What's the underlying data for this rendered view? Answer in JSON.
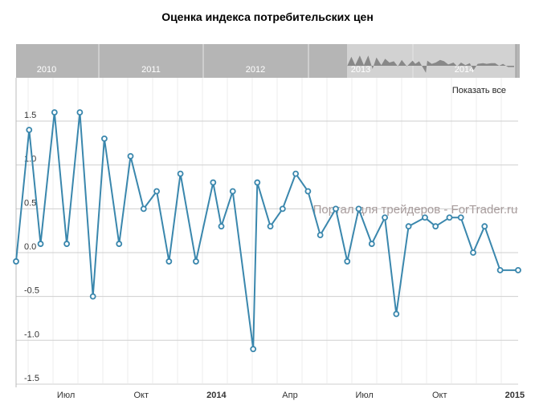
{
  "chart_data": {
    "type": "line",
    "title": "Оценка индекса потребительских цен",
    "xlabel": "",
    "ylabel": "",
    "ylim": [
      -1.5,
      1.75
    ],
    "xlim": [
      "2013-05-01",
      "2015-01-05"
    ],
    "grid": true,
    "y_ticks": [
      "1.5",
      "1.0",
      "0.5",
      "0.0",
      "-0.5",
      "-1.0",
      "-1.5"
    ],
    "x_ticks": [
      {
        "date": "2013-07-01",
        "label": "Июл",
        "bold": false
      },
      {
        "date": "2013-10-01",
        "label": "Окт",
        "bold": false
      },
      {
        "date": "2014-01-01",
        "label": "2014",
        "bold": true
      },
      {
        "date": "2014-04-01",
        "label": "Апр",
        "bold": false
      },
      {
        "date": "2014-07-01",
        "label": "Июл",
        "bold": false
      },
      {
        "date": "2014-10-01",
        "label": "Окт",
        "bold": false
      },
      {
        "date": "2015-01-01",
        "label": "2015",
        "bold": true
      }
    ],
    "series": [
      {
        "name": "Оценка индекса потребительских цен",
        "color": "#3a87ad",
        "x": [
          "2013-05-01",
          "2013-05-17",
          "2013-05-31",
          "2013-06-17",
          "2013-07-02",
          "2013-07-18",
          "2013-08-03",
          "2013-08-17",
          "2013-09-04",
          "2013-09-18",
          "2013-10-04",
          "2013-10-20",
          "2013-11-04",
          "2013-11-18",
          "2013-12-07",
          "2013-12-28",
          "2014-01-07",
          "2014-01-21",
          "2014-02-15",
          "2014-02-20",
          "2014-03-08",
          "2014-03-23",
          "2014-04-08",
          "2014-04-23",
          "2014-05-08",
          "2014-05-27",
          "2014-06-10",
          "2014-06-24",
          "2014-07-10",
          "2014-07-26",
          "2014-08-09",
          "2014-08-24",
          "2014-09-13",
          "2014-09-26",
          "2014-10-13",
          "2014-10-27",
          "2014-11-11",
          "2014-11-25",
          "2014-12-14",
          "2015-01-05"
        ],
        "values": [
          -0.1,
          1.4,
          0.1,
          1.6,
          0.1,
          1.6,
          -0.5,
          1.3,
          0.1,
          1.1,
          0.5,
          0.7,
          -0.1,
          0.9,
          -0.1,
          0.8,
          0.3,
          0.7,
          -1.1,
          0.8,
          0.3,
          0.5,
          0.9,
          0.7,
          0.2,
          0.5,
          -0.1,
          0.5,
          0.1,
          0.4,
          -0.7,
          0.3,
          0.4,
          0.3,
          0.4,
          0.4,
          0.0,
          0.3,
          -0.2,
          -0.2
        ]
      }
    ]
  },
  "navigator": {
    "years": [
      "2010",
      "2011",
      "2012",
      "2013",
      "2014"
    ],
    "selected_range_start_year": "2013"
  },
  "controls": {
    "show_all": "Показать все"
  },
  "watermark": "Портал для трейдеров - ForTrader.ru"
}
